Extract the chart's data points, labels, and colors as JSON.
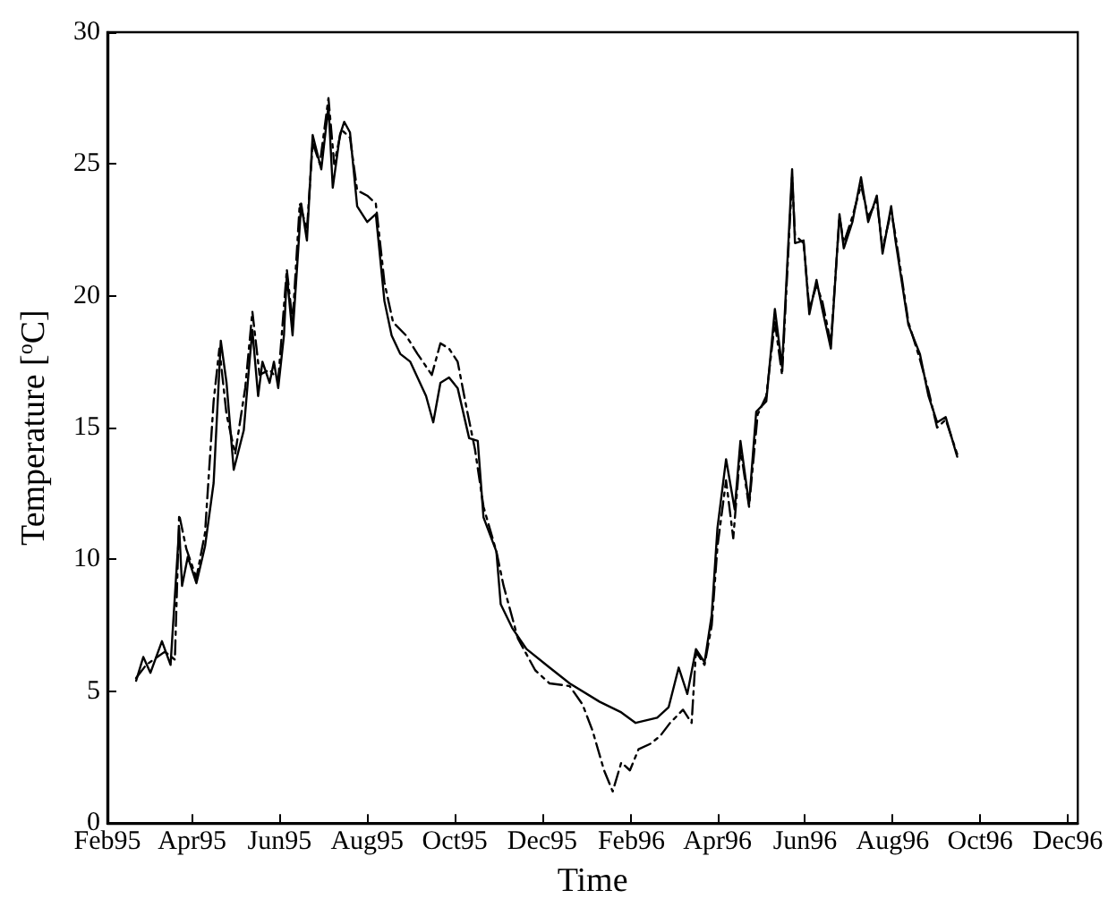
{
  "chart_data": {
    "type": "line",
    "xlabel": "Time",
    "ylabel": "Temperature [$^{o}$C]",
    "xlim": [
      "1995-02-01",
      "1996-12-08"
    ],
    "ylim": [
      0,
      30
    ],
    "yticks": [
      0,
      5,
      10,
      15,
      20,
      25,
      30
    ],
    "xticks": [
      {
        "value": "1995-02-01",
        "label": "Feb95"
      },
      {
        "value": "1995-04-01",
        "label": "Apr95"
      },
      {
        "value": "1995-06-01",
        "label": "Jun95"
      },
      {
        "value": "1995-08-01",
        "label": "Aug95"
      },
      {
        "value": "1995-10-01",
        "label": "Oct95"
      },
      {
        "value": "1995-12-01",
        "label": "Dec95"
      },
      {
        "value": "1996-02-01",
        "label": "Feb96"
      },
      {
        "value": "1996-04-01",
        "label": "Apr96"
      },
      {
        "value": "1996-06-01",
        "label": "Jun96"
      },
      {
        "value": "1996-08-01",
        "label": "Aug96"
      },
      {
        "value": "1996-10-01",
        "label": "Oct96"
      },
      {
        "value": "1996-12-01",
        "label": "Dec96"
      }
    ],
    "marker": "none",
    "series": [
      {
        "color": "#000000",
        "line_style": "solid",
        "x": [
          "1995-02-21",
          "1995-02-26",
          "1995-03-03",
          "1995-03-11",
          "1995-03-17",
          "1995-03-23",
          "1995-03-25",
          "1995-03-29",
          "1995-04-04",
          "1995-04-10",
          "1995-04-16",
          "1995-04-21",
          "1995-04-25",
          "1995-04-30",
          "1995-05-07",
          "1995-05-11",
          "1995-05-13",
          "1995-05-17",
          "1995-05-20",
          "1995-05-25",
          "1995-05-28",
          "1995-05-31",
          "1995-06-04",
          "1995-06-06",
          "1995-06-10",
          "1995-06-14",
          "1995-06-16",
          "1995-06-20",
          "1995-06-24",
          "1995-06-30",
          "1995-07-05",
          "1995-07-08",
          "1995-07-13",
          "1995-07-16",
          "1995-07-20",
          "1995-07-25",
          "1995-08-01",
          "1995-08-07",
          "1995-08-13",
          "1995-08-18",
          "1995-08-24",
          "1995-08-31",
          "1995-09-11",
          "1995-09-16",
          "1995-09-21",
          "1995-09-27",
          "1995-10-03",
          "1995-10-11",
          "1995-10-17",
          "1995-10-21",
          "1995-10-30",
          "1995-11-02",
          "1995-11-10",
          "1995-11-20",
          "1995-12-06",
          "1995-12-20",
          "1996-01-10",
          "1996-01-25",
          "1996-02-04",
          "1996-02-19",
          "1996-02-27",
          "1996-03-05",
          "1996-03-11",
          "1996-03-17",
          "1996-03-23",
          "1996-03-28",
          "1996-04-01",
          "1996-04-07",
          "1996-04-13",
          "1996-04-17",
          "1996-04-23",
          "1996-04-28",
          "1996-05-05",
          "1996-05-11",
          "1996-05-16",
          "1996-05-23",
          "1996-05-25",
          "1996-05-31",
          "1996-06-04",
          "1996-06-09",
          "1996-06-13",
          "1996-06-19",
          "1996-06-25",
          "1996-06-28",
          "1996-07-04",
          "1996-07-10",
          "1996-07-15",
          "1996-07-21",
          "1996-07-25",
          "1996-07-31",
          "1996-08-03",
          "1996-08-12",
          "1996-08-20",
          "1996-08-26",
          "1996-09-01",
          "1996-09-07",
          "1996-09-15"
        ],
        "values": [
          5.4,
          6.3,
          5.7,
          6.9,
          6.0,
          11.2,
          9.0,
          10.1,
          9.1,
          10.5,
          12.9,
          18.3,
          16.7,
          13.4,
          14.9,
          17.5,
          18.7,
          16.2,
          17.5,
          16.7,
          17.5,
          16.5,
          18.5,
          20.8,
          18.5,
          21.8,
          23.5,
          22.1,
          26.1,
          24.8,
          27.2,
          24.1,
          26.1,
          26.6,
          26.2,
          23.4,
          22.8,
          23.1,
          19.8,
          18.5,
          17.8,
          17.5,
          16.2,
          15.2,
          16.7,
          16.9,
          16.5,
          14.6,
          14.5,
          11.6,
          10.3,
          8.3,
          7.4,
          6.6,
          5.9,
          5.3,
          4.6,
          4.2,
          3.8,
          4.0,
          4.4,
          5.9,
          4.9,
          6.6,
          6.1,
          7.9,
          11.2,
          13.8,
          11.9,
          14.5,
          12.1,
          15.6,
          16.0,
          19.5,
          17.3,
          24.8,
          22.0,
          22.1,
          19.3,
          20.6,
          19.5,
          18.0,
          23.1,
          21.8,
          22.8,
          24.5,
          22.8,
          23.8,
          21.6,
          23.4,
          22.1,
          18.9,
          17.8,
          16.2,
          15.2,
          15.4,
          13.9
        ]
      },
      {
        "color": "#000000",
        "line_style": "dashed",
        "x": [
          "1995-02-21",
          "1995-02-28",
          "1995-03-13",
          "1995-03-20",
          "1995-03-23",
          "1995-03-28",
          "1995-04-04",
          "1995-04-10",
          "1995-04-16",
          "1995-04-20",
          "1995-04-25",
          "1995-05-01",
          "1995-05-08",
          "1995-05-13",
          "1995-05-18",
          "1995-05-25",
          "1995-05-31",
          "1995-06-06",
          "1995-06-10",
          "1995-06-15",
          "1995-06-20",
          "1995-06-24",
          "1995-06-29",
          "1995-07-05",
          "1995-07-09",
          "1995-07-14",
          "1995-07-20",
          "1995-07-25",
          "1995-08-01",
          "1995-08-07",
          "1995-08-13",
          "1995-08-19",
          "1995-08-28",
          "1995-09-05",
          "1995-09-15",
          "1995-09-21",
          "1995-09-27",
          "1995-10-03",
          "1995-10-09",
          "1995-10-15",
          "1995-10-21",
          "1995-10-30",
          "1995-11-04",
          "1995-11-14",
          "1995-11-26",
          "1995-12-06",
          "1995-12-20",
          "1995-12-29",
          "1996-01-05",
          "1996-01-13",
          "1996-01-19",
          "1996-01-25",
          "1996-01-31",
          "1996-02-06",
          "1996-02-14",
          "1996-02-21",
          "1996-02-28",
          "1996-03-08",
          "1996-03-14",
          "1996-03-17",
          "1996-03-23",
          "1996-03-28",
          "1996-04-01",
          "1996-04-07",
          "1996-04-12",
          "1996-04-17",
          "1996-04-23",
          "1996-04-29",
          "1996-05-05",
          "1996-05-11",
          "1996-05-16",
          "1996-05-23",
          "1996-05-25",
          "1996-05-31",
          "1996-06-04",
          "1996-06-09",
          "1996-06-13",
          "1996-06-19",
          "1996-06-25",
          "1996-06-28",
          "1996-07-04",
          "1996-07-10",
          "1996-07-15",
          "1996-07-21",
          "1996-07-25",
          "1996-07-31",
          "1996-08-03",
          "1996-08-12",
          "1996-08-20",
          "1996-08-26",
          "1996-09-01",
          "1996-09-07",
          "1996-09-15"
        ],
        "values": [
          5.5,
          6.0,
          6.5,
          6.2,
          11.7,
          10.4,
          9.3,
          11.0,
          16.0,
          18.0,
          15.5,
          14.0,
          16.5,
          19.4,
          17.0,
          17.2,
          16.8,
          21.0,
          19.0,
          23.5,
          22.5,
          25.8,
          25.0,
          27.5,
          25.0,
          26.3,
          26.0,
          24.0,
          23.8,
          23.5,
          20.5,
          19.0,
          18.5,
          17.8,
          17.0,
          18.2,
          18.0,
          17.5,
          15.8,
          14.2,
          12.0,
          10.3,
          9.0,
          7.0,
          5.8,
          5.3,
          5.2,
          4.5,
          3.5,
          2.0,
          1.2,
          2.3,
          2.0,
          2.8,
          3.0,
          3.3,
          3.8,
          4.3,
          3.8,
          6.5,
          6.0,
          7.5,
          10.5,
          13.0,
          10.8,
          14.2,
          12.0,
          15.5,
          16.2,
          19.0,
          17.0,
          24.5,
          22.3,
          22.0,
          19.5,
          20.4,
          19.8,
          18.2,
          23.0,
          22.0,
          23.0,
          24.2,
          23.0,
          23.6,
          21.8,
          23.2,
          22.3,
          19.0,
          17.6,
          16.4,
          15.0,
          15.3,
          14.0
        ]
      }
    ]
  }
}
